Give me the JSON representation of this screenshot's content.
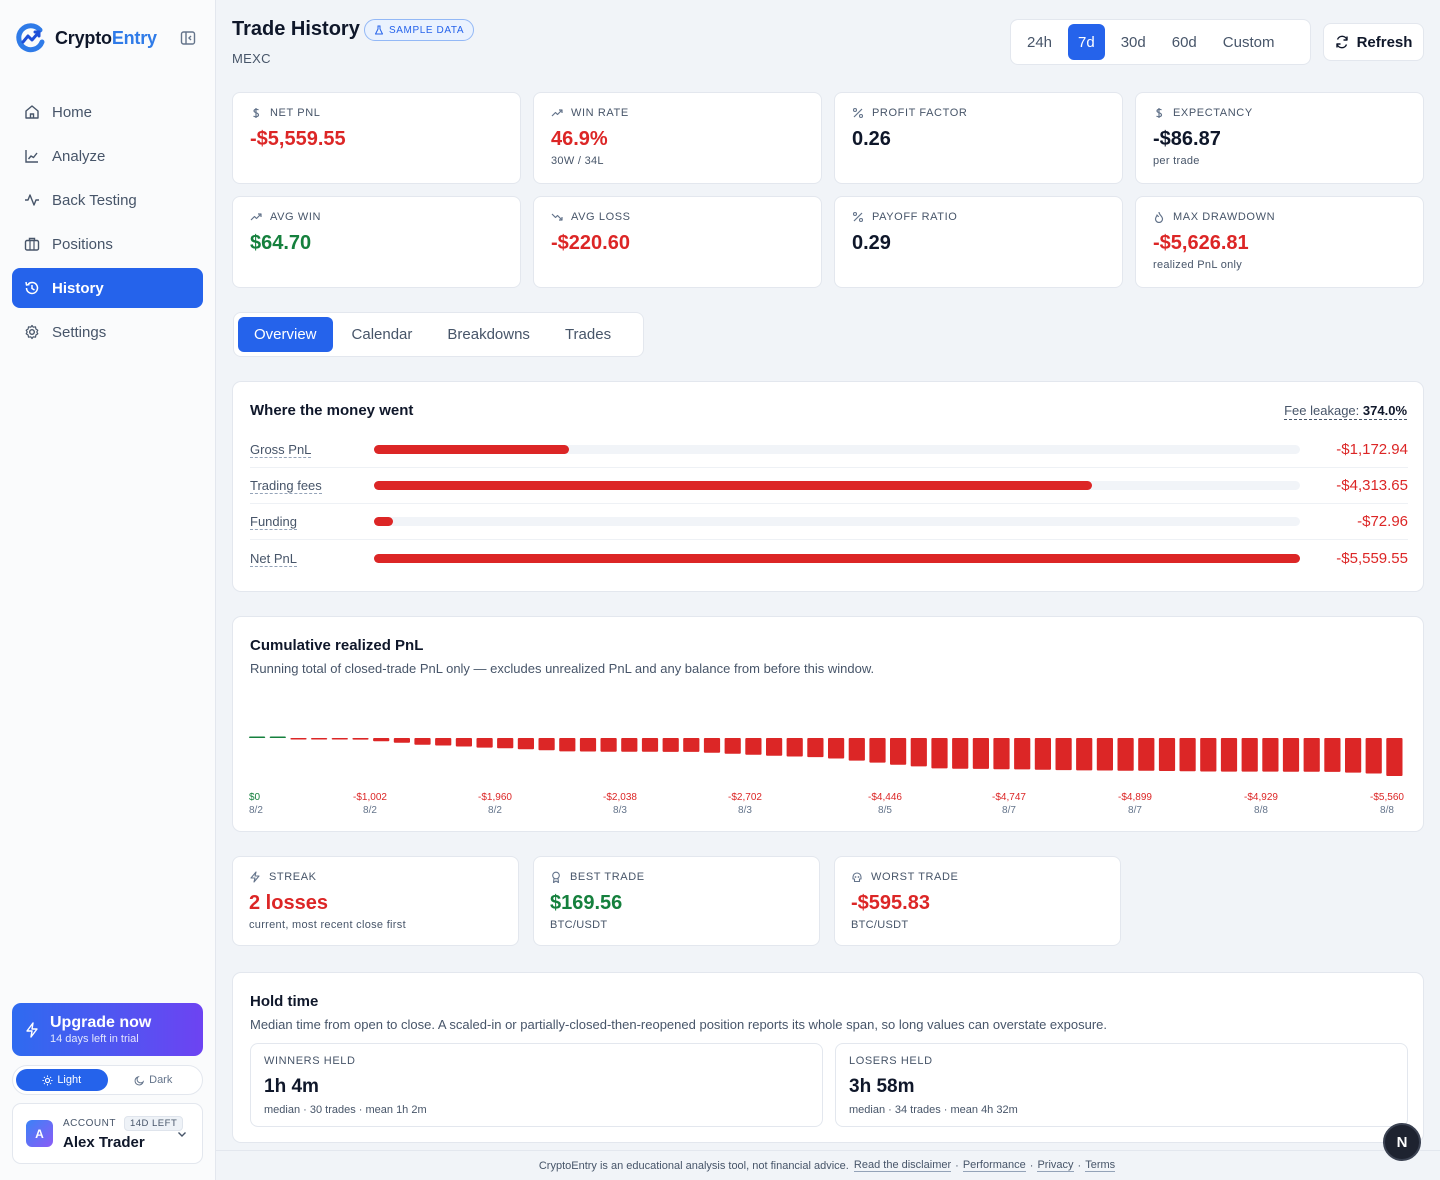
{
  "app": {
    "name_main": "Crypto",
    "name_accent": "Entry"
  },
  "sidebar": {
    "items": [
      {
        "label": "Home",
        "icon": "home-icon"
      },
      {
        "label": "Analyze",
        "icon": "chart-line-icon"
      },
      {
        "label": "Back Testing",
        "icon": "activity-icon"
      },
      {
        "label": "Positions",
        "icon": "briefcase-icon"
      },
      {
        "label": "History",
        "icon": "history-icon"
      },
      {
        "label": "Settings",
        "icon": "gear-icon"
      }
    ],
    "active": "History",
    "upgrade": {
      "title": "Upgrade now",
      "subtitle": "14 days left in trial"
    },
    "theme": {
      "light": "Light",
      "dark": "Dark",
      "active": "Light"
    },
    "account": {
      "label": "ACCOUNT",
      "badge": "14D LEFT",
      "name": "Alex Trader",
      "initial": "A"
    }
  },
  "header": {
    "title": "Trade History",
    "badge": "SAMPLE DATA",
    "exchange": "MEXC",
    "ranges": [
      "24h",
      "7d",
      "30d",
      "60d",
      "Custom"
    ],
    "active_range": "7d",
    "refresh": "Refresh"
  },
  "stats": [
    {
      "label": "NET PNL",
      "value": "-$5,559.55",
      "sub": "",
      "tone": "neg",
      "icon": "dollar-icon"
    },
    {
      "label": "WIN RATE",
      "value": "46.9%",
      "sub": "30W / 34L",
      "tone": "neg",
      "icon": "trending-up-icon"
    },
    {
      "label": "PROFIT FACTOR",
      "value": "0.26",
      "sub": "",
      "tone": "neutral",
      "icon": "percent-icon"
    },
    {
      "label": "EXPECTANCY",
      "value": "-$86.87",
      "sub": "per trade",
      "tone": "neutral",
      "icon": "dollar-icon"
    },
    {
      "label": "AVG WIN",
      "value": "$64.70",
      "sub": "",
      "tone": "pos",
      "icon": "trending-up-icon"
    },
    {
      "label": "AVG LOSS",
      "value": "-$220.60",
      "sub": "",
      "tone": "neg",
      "icon": "trending-down-icon"
    },
    {
      "label": "PAYOFF RATIO",
      "value": "0.29",
      "sub": "",
      "tone": "neutral",
      "icon": "percent-icon"
    },
    {
      "label": "MAX DRAWDOWN",
      "value": "-$5,626.81",
      "sub": "realized PnL only",
      "tone": "neg",
      "icon": "flame-icon"
    }
  ],
  "tabs": [
    "Overview",
    "Calendar",
    "Breakdowns",
    "Trades"
  ],
  "active_tab": "Overview",
  "money": {
    "title": "Where the money went",
    "fee_label": "Fee leakage:",
    "fee_value": "374.0%",
    "rows": [
      {
        "label": "Gross PnL",
        "value": "-$1,172.94",
        "amount": 1172.94
      },
      {
        "label": "Trading fees",
        "value": "-$4,313.65",
        "amount": 4313.65
      },
      {
        "label": "Funding",
        "value": "-$72.96",
        "amount": 72.96
      },
      {
        "label": "Net PnL",
        "value": "-$5,559.55",
        "amount": 5559.55
      }
    ]
  },
  "cumulative": {
    "title": "Cumulative realized PnL",
    "subtitle": "Running total of closed-trade PnL only — excludes unrealized PnL and any balance from before this window.",
    "axis_labels": [
      {
        "value": "$0",
        "date": "8/2",
        "tone": "pos"
      },
      {
        "value": "-$1,002",
        "date": "8/2",
        "tone": "neg"
      },
      {
        "value": "-$1,960",
        "date": "8/2",
        "tone": "neg"
      },
      {
        "value": "-$2,038",
        "date": "8/3",
        "tone": "neg"
      },
      {
        "value": "-$2,702",
        "date": "8/3",
        "tone": "neg"
      },
      {
        "value": "-$4,446",
        "date": "8/5",
        "tone": "neg"
      },
      {
        "value": "-$4,747",
        "date": "8/7",
        "tone": "neg"
      },
      {
        "value": "-$4,899",
        "date": "8/7",
        "tone": "neg"
      },
      {
        "value": "-$4,929",
        "date": "8/8",
        "tone": "neg"
      },
      {
        "value": "-$5,560",
        "date": "8/8",
        "tone": "neg"
      }
    ]
  },
  "chart_data": {
    "type": "bar",
    "title": "Cumulative realized PnL",
    "values": [
      45,
      40,
      -40,
      -60,
      -150,
      -230,
      -480,
      -700,
      -1002,
      -1100,
      -1250,
      -1400,
      -1500,
      -1650,
      -1800,
      -1960,
      -1980,
      -2000,
      -2010,
      -2020,
      -2030,
      -2038,
      -2150,
      -2300,
      -2450,
      -2600,
      -2702,
      -2800,
      -3000,
      -3300,
      -3600,
      -3900,
      -4150,
      -4446,
      -4500,
      -4520,
      -4560,
      -4600,
      -4650,
      -4700,
      -4747,
      -4760,
      -4780,
      -4800,
      -4830,
      -4860,
      -4899,
      -4910,
      -4915,
      -4920,
      -4925,
      -4929,
      -4960,
      -5060,
      -5200,
      -5560
    ],
    "colors": {
      "positive": "#15803d",
      "negative": "#dc2626"
    }
  },
  "mini_stats": [
    {
      "label": "STREAK",
      "value": "2 losses",
      "sub": "current, most recent close first",
      "tone": "neg",
      "icon": "bolt-icon"
    },
    {
      "label": "BEST TRADE",
      "value": "$169.56",
      "sub": "BTC/USDT",
      "tone": "pos",
      "icon": "award-icon"
    },
    {
      "label": "WORST TRADE",
      "value": "-$595.83",
      "sub": "BTC/USDT",
      "tone": "neg",
      "icon": "skull-icon"
    }
  ],
  "hold": {
    "title": "Hold time",
    "subtitle": "Median time from open to close. A scaled-in or partially-closed-then-reopened position reports its whole span, so long values can overstate exposure.",
    "winners": {
      "label": "WINNERS HELD",
      "value": "1h 4m",
      "sub": "median · 30 trades · mean 1h 2m"
    },
    "losers": {
      "label": "LOSERS HELD",
      "value": "3h 58m",
      "sub": "median · 34 trades · mean 4h 32m"
    }
  },
  "footer": {
    "text": "CryptoEntry is an educational analysis tool, not financial advice.",
    "links": [
      "Read the disclaimer",
      "Performance",
      "Privacy",
      "Terms"
    ]
  },
  "fab": "N"
}
